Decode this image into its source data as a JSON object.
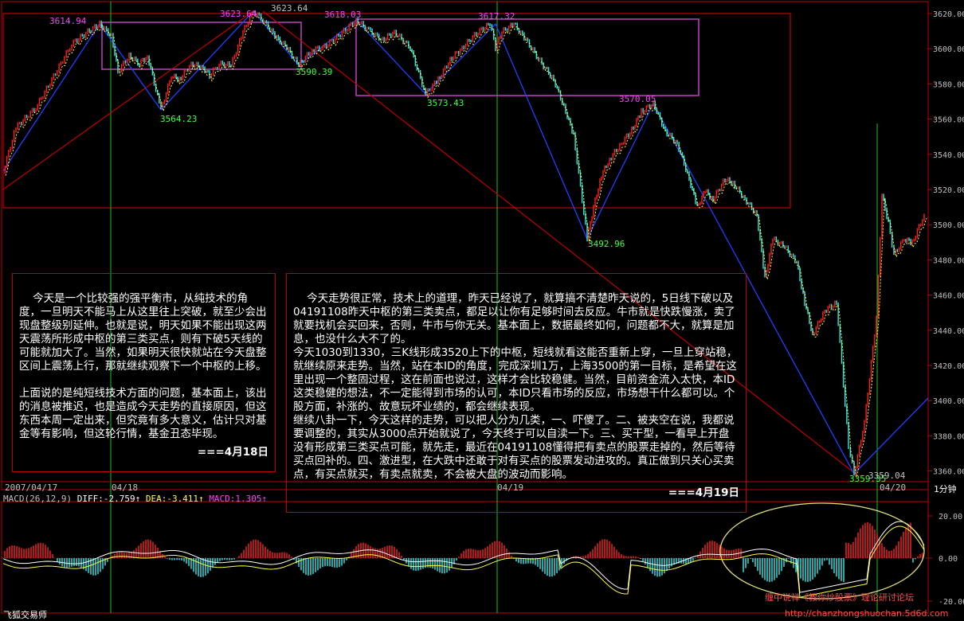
{
  "app": {
    "title": "飞狐交易师"
  },
  "price_axis": {
    "ticks": [
      "3620.00",
      "3600.00",
      "3580.00",
      "3560.00",
      "3540.00",
      "3520.00",
      "3500.00",
      "3480.00",
      "3460.00",
      "3440.00",
      "3420.00",
      "3400.00",
      "3380.00",
      "3360.00"
    ]
  },
  "timeframe": "1分钟",
  "date_labels": [
    "2007/04/17",
    "04/18",
    "04/19",
    "04/20"
  ],
  "price_labels": [
    "3614.94",
    "3623.64",
    "3623.64",
    "3618.03",
    "3617.32",
    "3564.23",
    "3590.39",
    "3573.43",
    "3570.05",
    "3492.96",
    "3359.35",
    "3359.04"
  ],
  "macd": {
    "title": "MACD(26,12,9)",
    "diff": "DIFF:-2.759",
    "dea": "DEA:-3.411",
    "macd": "MACD:1.305",
    "ticks": [
      "20.00",
      "0.00",
      "-20.00"
    ]
  },
  "notes": {
    "left": {
      "p1": "今天是一个比较强的强平衡市，从纯技术的角度，一旦明天不能马上从这里往上突破，就至少会出现盘整级别延伸。也就是说，明天如果不能出现这两天震荡所形成中枢的第三类买点，则有下破5天线的可能就加大了。当然，如果明天很快就站在今天盘整区间上震荡上行，那就继续观察下一个中枢的上移。",
      "p2": "上面说的是纯短线技术方面的问题，基本面上，该出的消息被推迟，也是造成今天走势的直接原因，但这东西本周一定出来，但究竟有多大意义，估计只对基金等有影响，但这轮行情，基金丑态毕现。",
      "date": "===4月18日"
    },
    "right": {
      "p1": "今天走势很正常，技术上的道理，昨天已经说了，就算搞不清楚昨天说的，5日线下破以及04191108昨天中枢的第三类卖点，都足以让你有足够时间去反应。牛市就是快跌慢涨，卖了就要找机会买回来，否则，牛市与你无关。基本面上，数据最终如何，问题都不大，就算是加息，也没什么大不了的。",
      "p2": "今天1030到1330，三K线形成3520上下的中枢，短线就看这能否重新上穿，一旦上穿站稳，就继续原来走势。当然，站在本ID的角度，完成深圳1万，上海3500的第一目标，是希望在这里出现一个整固过程，这在前面也说过，这样才会比较稳健。当然，目前资金流入太快，本ID这类稳健的想法，不一定能得到市场的认可，本ID只看市场的反应，市场想干什么都可以。个股方面，补涨的、故意玩坏业绩的，都会继续表现。",
      "p3": "继续八卦一下，今天这样的走势，可以把人分为几类，一、吓傻了。二、被夹空在说，我都说要调整的，其实从3000点开始就说了，今天终于可以自渎一下。三、买干型，一看早上开盘没有形成第三类买点可能，就先走，最近在04191108懂得把有卖点的股票走掉的，然后等待买点回补的。四、激进型，在大跌中还敢于对有买点的股票发动进攻的。真正做到只关心买卖点，有买点就买，有卖点就卖，不会被大盘的波动而影响。",
      "date": "===4月19日"
    }
  },
  "watermark": {
    "title": "缠中说禅《教你炒股票》理论研讨论坛",
    "url": "http://chanzhongshuochan.5d6d.com"
  },
  "colors": {
    "up": "#ff2020",
    "down": "#30e8e8",
    "yellow": "#ffff40",
    "blue": "#2040ff",
    "darkred": "#c00000",
    "magenta": "#c040c0",
    "green": "#20ff20",
    "grid": "#800000"
  }
}
